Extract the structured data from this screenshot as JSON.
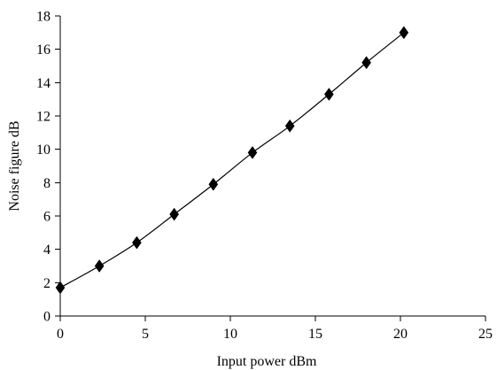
{
  "chart_data": {
    "type": "line",
    "title": "",
    "xlabel": "Input power dBm",
    "ylabel": "Noise figure dB",
    "xlim": [
      0,
      25
    ],
    "ylim": [
      0,
      18
    ],
    "x_ticks": [
      0,
      5,
      10,
      15,
      20,
      25
    ],
    "y_ticks": [
      0,
      2,
      4,
      6,
      8,
      10,
      12,
      14,
      16,
      18
    ],
    "grid": false,
    "legend": "none",
    "marker": "diamond",
    "series": [
      {
        "x": [
          0,
          2.3,
          4.5,
          6.7,
          9.0,
          11.3,
          13.5,
          15.8,
          18.0,
          20.2
        ],
        "y": [
          1.7,
          3.0,
          4.4,
          6.1,
          7.9,
          9.8,
          11.4,
          13.3,
          15.2,
          17.0
        ]
      }
    ]
  }
}
